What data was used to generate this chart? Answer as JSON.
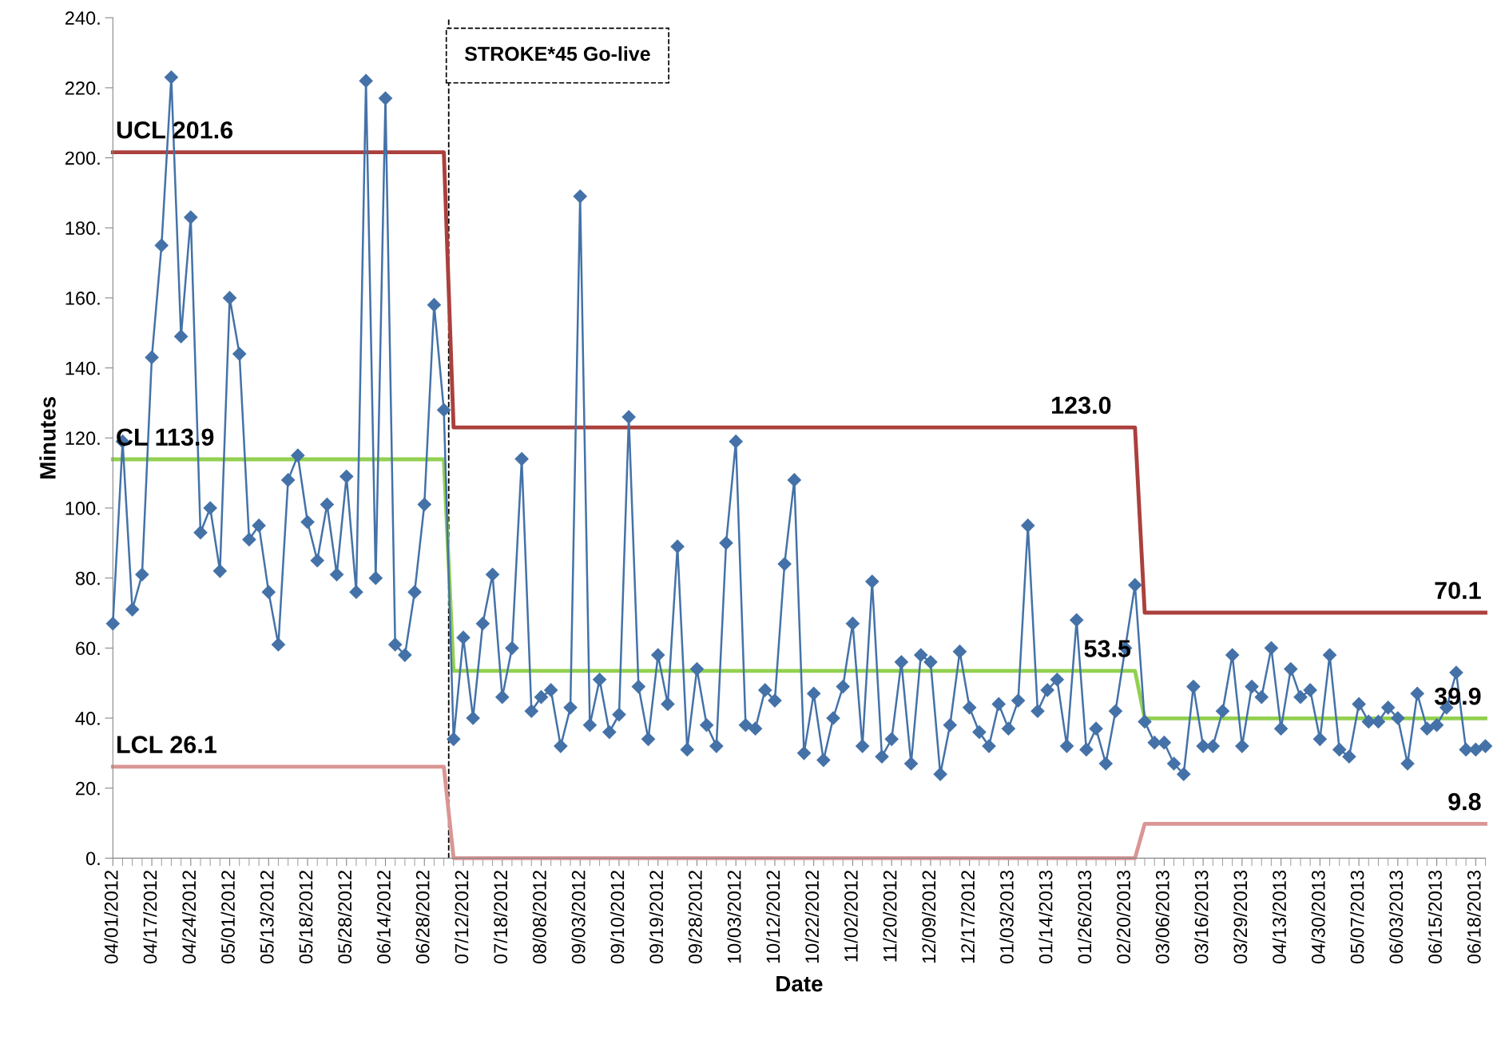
{
  "chart_data": {
    "type": "line",
    "xlabel": "Date",
    "ylabel": "Minutes",
    "categories": [
      "04/01/2012",
      null,
      null,
      null,
      "04/17/2012",
      null,
      null,
      null,
      "04/24/2012",
      null,
      null,
      null,
      "05/01/2012",
      null,
      null,
      null,
      "05/13/2012",
      null,
      null,
      null,
      "05/18/2012",
      null,
      null,
      null,
      "05/28/2012",
      null,
      null,
      null,
      "06/14/2012",
      null,
      null,
      null,
      "06/28/2012",
      null,
      null,
      null,
      "07/12/2012",
      null,
      null,
      null,
      "07/18/2012",
      null,
      null,
      null,
      "08/08/2012",
      null,
      null,
      null,
      "09/03/2012",
      null,
      null,
      null,
      "09/10/2012",
      null,
      null,
      null,
      "09/19/2012",
      null,
      null,
      null,
      "09/28/2012",
      null,
      null,
      null,
      "10/03/2012",
      null,
      null,
      null,
      "10/12/2012",
      null,
      null,
      null,
      "10/22/2012",
      null,
      null,
      null,
      "11/02/2012",
      null,
      null,
      null,
      "11/20/2012",
      null,
      null,
      null,
      "12/09/2012",
      null,
      null,
      null,
      "12/17/2012",
      null,
      null,
      null,
      "01/03/2013",
      null,
      null,
      null,
      "01/14/2013",
      null,
      null,
      null,
      "01/26/2013",
      null,
      null,
      null,
      "02/20/2013",
      null,
      null,
      null,
      "03/06/2013",
      null,
      null,
      null,
      "03/16/2013",
      null,
      null,
      null,
      "03/29/2013",
      null,
      null,
      null,
      "04/13/2013",
      null,
      null,
      null,
      "04/30/2013",
      null,
      null,
      null,
      "05/07/2013",
      null,
      null,
      null,
      "06/03/2013",
      null,
      null,
      null,
      "06/15/2013",
      null,
      null,
      null,
      "06/18/2013",
      null
    ],
    "series": [
      {
        "color": "#aa403d",
        "values": [
          201.6,
          201.6,
          201.6,
          201.6,
          201.6,
          201.6,
          201.6,
          201.6,
          201.6,
          201.6,
          201.6,
          201.6,
          201.6,
          201.6,
          201.6,
          201.6,
          201.6,
          201.6,
          201.6,
          201.6,
          201.6,
          201.6,
          201.6,
          201.6,
          201.6,
          201.6,
          201.6,
          201.6,
          201.6,
          201.6,
          201.6,
          201.6,
          201.6,
          201.6,
          201.6,
          123.0,
          123.0,
          123.0,
          123.0,
          123.0,
          123.0,
          123.0,
          123.0,
          123.0,
          123.0,
          123.0,
          123.0,
          123.0,
          123.0,
          123.0,
          123.0,
          123.0,
          123.0,
          123.0,
          123.0,
          123.0,
          123.0,
          123.0,
          123.0,
          123.0,
          123.0,
          123.0,
          123.0,
          123.0,
          123.0,
          123.0,
          123.0,
          123.0,
          123.0,
          123.0,
          123.0,
          123.0,
          123.0,
          123.0,
          123.0,
          123.0,
          123.0,
          123.0,
          123.0,
          123.0,
          123.0,
          123.0,
          123.0,
          123.0,
          123.0,
          123.0,
          123.0,
          123.0,
          123.0,
          123.0,
          123.0,
          123.0,
          123.0,
          123.0,
          123.0,
          123.0,
          123.0,
          123.0,
          123.0,
          123.0,
          123.0,
          123.0,
          123.0,
          123.0,
          123.0,
          123.0,
          70.1,
          70.1,
          70.1,
          70.1,
          70.1,
          70.1,
          70.1,
          70.1,
          70.1,
          70.1,
          70.1,
          70.1,
          70.1,
          70.1,
          70.1,
          70.1,
          70.1,
          70.1,
          70.1,
          70.1,
          70.1,
          70.1,
          70.1,
          70.1,
          70.1,
          70.1,
          70.1,
          70.1,
          70.1,
          70.1,
          70.1,
          70.1,
          70.1,
          70.1,
          70.1,
          70.1
        ],
        "value_labels": [
          "UCL 201.6",
          null,
          null,
          null,
          null,
          null,
          null,
          null,
          null,
          null,
          null,
          null,
          null,
          null,
          null,
          null,
          null,
          null,
          null,
          null,
          null,
          null,
          null,
          null,
          null,
          null,
          null,
          null,
          null,
          null,
          null,
          null,
          null,
          null,
          null,
          null,
          null,
          null,
          null,
          null,
          null,
          null,
          null,
          null,
          null,
          null,
          null,
          null,
          null,
          null,
          null,
          null,
          null,
          null,
          null,
          null,
          null,
          null,
          null,
          null,
          null,
          null,
          null,
          null,
          null,
          null,
          null,
          null,
          null,
          null,
          null,
          null,
          null,
          null,
          null,
          null,
          null,
          null,
          null,
          null,
          null,
          null,
          null,
          null,
          null,
          null,
          null,
          null,
          null,
          null,
          null,
          null,
          null,
          null,
          null,
          null,
          null,
          null,
          null,
          null,
          null,
          null,
          null,
          "123.0",
          null,
          null,
          null,
          null,
          null,
          null,
          null,
          null,
          null,
          null,
          null,
          null,
          null,
          null,
          null,
          null,
          null,
          null,
          null,
          null,
          null,
          null,
          null,
          null,
          null,
          null,
          null,
          null,
          null,
          null,
          null,
          null,
          null,
          null,
          null,
          null,
          null,
          "70.1"
        ]
      },
      {
        "color": "#92d050",
        "values": [
          113.9,
          113.9,
          113.9,
          113.9,
          113.9,
          113.9,
          113.9,
          113.9,
          113.9,
          113.9,
          113.9,
          113.9,
          113.9,
          113.9,
          113.9,
          113.9,
          113.9,
          113.9,
          113.9,
          113.9,
          113.9,
          113.9,
          113.9,
          113.9,
          113.9,
          113.9,
          113.9,
          113.9,
          113.9,
          113.9,
          113.9,
          113.9,
          113.9,
          113.9,
          113.9,
          53.5,
          53.5,
          53.5,
          53.5,
          53.5,
          53.5,
          53.5,
          53.5,
          53.5,
          53.5,
          53.5,
          53.5,
          53.5,
          53.5,
          53.5,
          53.5,
          53.5,
          53.5,
          53.5,
          53.5,
          53.5,
          53.5,
          53.5,
          53.5,
          53.5,
          53.5,
          53.5,
          53.5,
          53.5,
          53.5,
          53.5,
          53.5,
          53.5,
          53.5,
          53.5,
          53.5,
          53.5,
          53.5,
          53.5,
          53.5,
          53.5,
          53.5,
          53.5,
          53.5,
          53.5,
          53.5,
          53.5,
          53.5,
          53.5,
          53.5,
          53.5,
          53.5,
          53.5,
          53.5,
          53.5,
          53.5,
          53.5,
          53.5,
          53.5,
          53.5,
          53.5,
          53.5,
          53.5,
          53.5,
          53.5,
          53.5,
          53.5,
          53.5,
          53.5,
          53.5,
          53.5,
          39.9,
          39.9,
          39.9,
          39.9,
          39.9,
          39.9,
          39.9,
          39.9,
          39.9,
          39.9,
          39.9,
          39.9,
          39.9,
          39.9,
          39.9,
          39.9,
          39.9,
          39.9,
          39.9,
          39.9,
          39.9,
          39.9,
          39.9,
          39.9,
          39.9,
          39.9,
          39.9,
          39.9,
          39.9,
          39.9,
          39.9,
          39.9,
          39.9,
          39.9,
          39.9,
          39.9
        ],
        "value_labels": [
          "CL 113.9",
          null,
          null,
          null,
          null,
          null,
          null,
          null,
          null,
          null,
          null,
          null,
          null,
          null,
          null,
          null,
          null,
          null,
          null,
          null,
          null,
          null,
          null,
          null,
          null,
          null,
          null,
          null,
          null,
          null,
          null,
          null,
          null,
          null,
          null,
          null,
          null,
          null,
          null,
          null,
          null,
          null,
          null,
          null,
          null,
          null,
          null,
          null,
          null,
          null,
          null,
          null,
          null,
          null,
          null,
          null,
          null,
          null,
          null,
          null,
          null,
          null,
          null,
          null,
          null,
          null,
          null,
          null,
          null,
          null,
          null,
          null,
          null,
          null,
          null,
          null,
          null,
          null,
          null,
          null,
          null,
          null,
          null,
          null,
          null,
          null,
          null,
          null,
          null,
          null,
          null,
          null,
          null,
          null,
          null,
          null,
          null,
          null,
          null,
          null,
          null,
          null,
          null,
          null,
          null,
          "53.5",
          null,
          null,
          null,
          null,
          null,
          null,
          null,
          null,
          null,
          null,
          null,
          null,
          null,
          null,
          null,
          null,
          null,
          null,
          null,
          null,
          null,
          null,
          null,
          null,
          null,
          null,
          null,
          null,
          null,
          null,
          null,
          null,
          null,
          null,
          null,
          "39.9"
        ]
      },
      {
        "color": "#d99694",
        "values": [
          26.1,
          26.1,
          26.1,
          26.1,
          26.1,
          26.1,
          26.1,
          26.1,
          26.1,
          26.1,
          26.1,
          26.1,
          26.1,
          26.1,
          26.1,
          26.1,
          26.1,
          26.1,
          26.1,
          26.1,
          26.1,
          26.1,
          26.1,
          26.1,
          26.1,
          26.1,
          26.1,
          26.1,
          26.1,
          26.1,
          26.1,
          26.1,
          26.1,
          26.1,
          26.1,
          0,
          0,
          0,
          0,
          0,
          0,
          0,
          0,
          0,
          0,
          0,
          0,
          0,
          0,
          0,
          0,
          0,
          0,
          0,
          0,
          0,
          0,
          0,
          0,
          0,
          0,
          0,
          0,
          0,
          0,
          0,
          0,
          0,
          0,
          0,
          0,
          0,
          0,
          0,
          0,
          0,
          0,
          0,
          0,
          0,
          0,
          0,
          0,
          0,
          0,
          0,
          0,
          0,
          0,
          0,
          0,
          0,
          0,
          0,
          0,
          0,
          0,
          0,
          0,
          0,
          0,
          0,
          0,
          0,
          0,
          0,
          9.8,
          9.8,
          9.8,
          9.8,
          9.8,
          9.8,
          9.8,
          9.8,
          9.8,
          9.8,
          9.8,
          9.8,
          9.8,
          9.8,
          9.8,
          9.8,
          9.8,
          9.8,
          9.8,
          9.8,
          9.8,
          9.8,
          9.8,
          9.8,
          9.8,
          9.8,
          9.8,
          9.8,
          9.8,
          9.8,
          9.8,
          9.8,
          9.8,
          9.8,
          9.8,
          9.8
        ],
        "value_labels": [
          "LCL 26.1",
          null,
          null,
          null,
          null,
          null,
          null,
          null,
          null,
          null,
          null,
          null,
          null,
          null,
          null,
          null,
          null,
          null,
          null,
          null,
          null,
          null,
          null,
          null,
          null,
          null,
          null,
          null,
          null,
          null,
          null,
          null,
          null,
          null,
          null,
          null,
          null,
          null,
          null,
          null,
          null,
          null,
          null,
          null,
          null,
          null,
          null,
          null,
          null,
          null,
          null,
          null,
          null,
          null,
          null,
          null,
          null,
          null,
          null,
          null,
          null,
          null,
          null,
          null,
          null,
          null,
          null,
          null,
          null,
          null,
          null,
          null,
          null,
          null,
          null,
          null,
          null,
          null,
          null,
          null,
          null,
          null,
          null,
          null,
          null,
          null,
          null,
          null,
          null,
          null,
          null,
          null,
          null,
          null,
          null,
          null,
          null,
          null,
          null,
          null,
          null,
          null,
          null,
          null,
          null,
          null,
          null,
          null,
          null,
          null,
          null,
          null,
          null,
          null,
          null,
          null,
          null,
          null,
          null,
          null,
          null,
          null,
          null,
          null,
          null,
          null,
          null,
          null,
          null,
          null,
          null,
          null,
          null,
          null,
          null,
          null,
          null,
          null,
          null,
          null,
          null,
          "9.8"
        ]
      },
      {
        "color": "#4472a8",
        "marker": "diamond",
        "values": [
          67,
          119,
          71,
          81,
          143,
          175,
          223,
          149,
          183,
          93,
          100,
          82,
          160,
          144,
          91,
          95,
          76,
          61,
          108,
          115,
          96,
          85,
          101,
          81,
          109,
          76,
          222,
          80,
          217,
          61,
          58,
          76,
          101,
          158,
          128,
          34,
          63,
          40,
          67,
          81,
          46,
          60,
          114,
          42,
          46,
          48,
          32,
          43,
          189,
          38,
          51,
          36,
          41,
          126,
          49,
          34,
          58,
          44,
          89,
          31,
          54,
          38,
          32,
          90,
          119,
          38,
          37,
          48,
          45,
          84,
          108,
          30,
          47,
          28,
          40,
          49,
          67,
          32,
          79,
          29,
          34,
          56,
          27,
          58,
          56,
          24,
          38,
          59,
          43,
          36,
          32,
          44,
          37,
          45,
          95,
          42,
          48,
          51,
          32,
          68,
          31,
          37,
          27,
          42,
          60,
          78,
          39,
          33,
          33,
          27,
          24,
          49,
          32,
          32,
          42,
          58,
          32,
          49,
          46,
          60,
          37,
          54,
          46,
          48,
          34,
          58,
          31,
          29,
          44,
          39,
          39,
          43,
          40,
          27,
          47,
          37,
          38,
          43,
          53,
          31,
          31,
          32
        ]
      }
    ],
    "ylim": [
      0,
      240
    ],
    "yticks": [
      {
        "value": 0,
        "label": "0."
      },
      {
        "value": 20,
        "label": "20."
      },
      {
        "value": 40,
        "label": "40."
      },
      {
        "value": 60,
        "label": "60."
      },
      {
        "value": 80,
        "label": "80."
      },
      {
        "value": 100,
        "label": "100."
      },
      {
        "value": 120,
        "label": "120."
      },
      {
        "value": 140,
        "label": "140."
      },
      {
        "value": 160,
        "label": "160."
      },
      {
        "value": 180,
        "label": "180."
      },
      {
        "value": 200,
        "label": "200."
      },
      {
        "value": 220,
        "label": "220."
      },
      {
        "value": 240,
        "label": "240."
      }
    ],
    "annotations": [
      "STROKE*45 Go-live"
    ],
    "grid": false,
    "legend": false
  }
}
